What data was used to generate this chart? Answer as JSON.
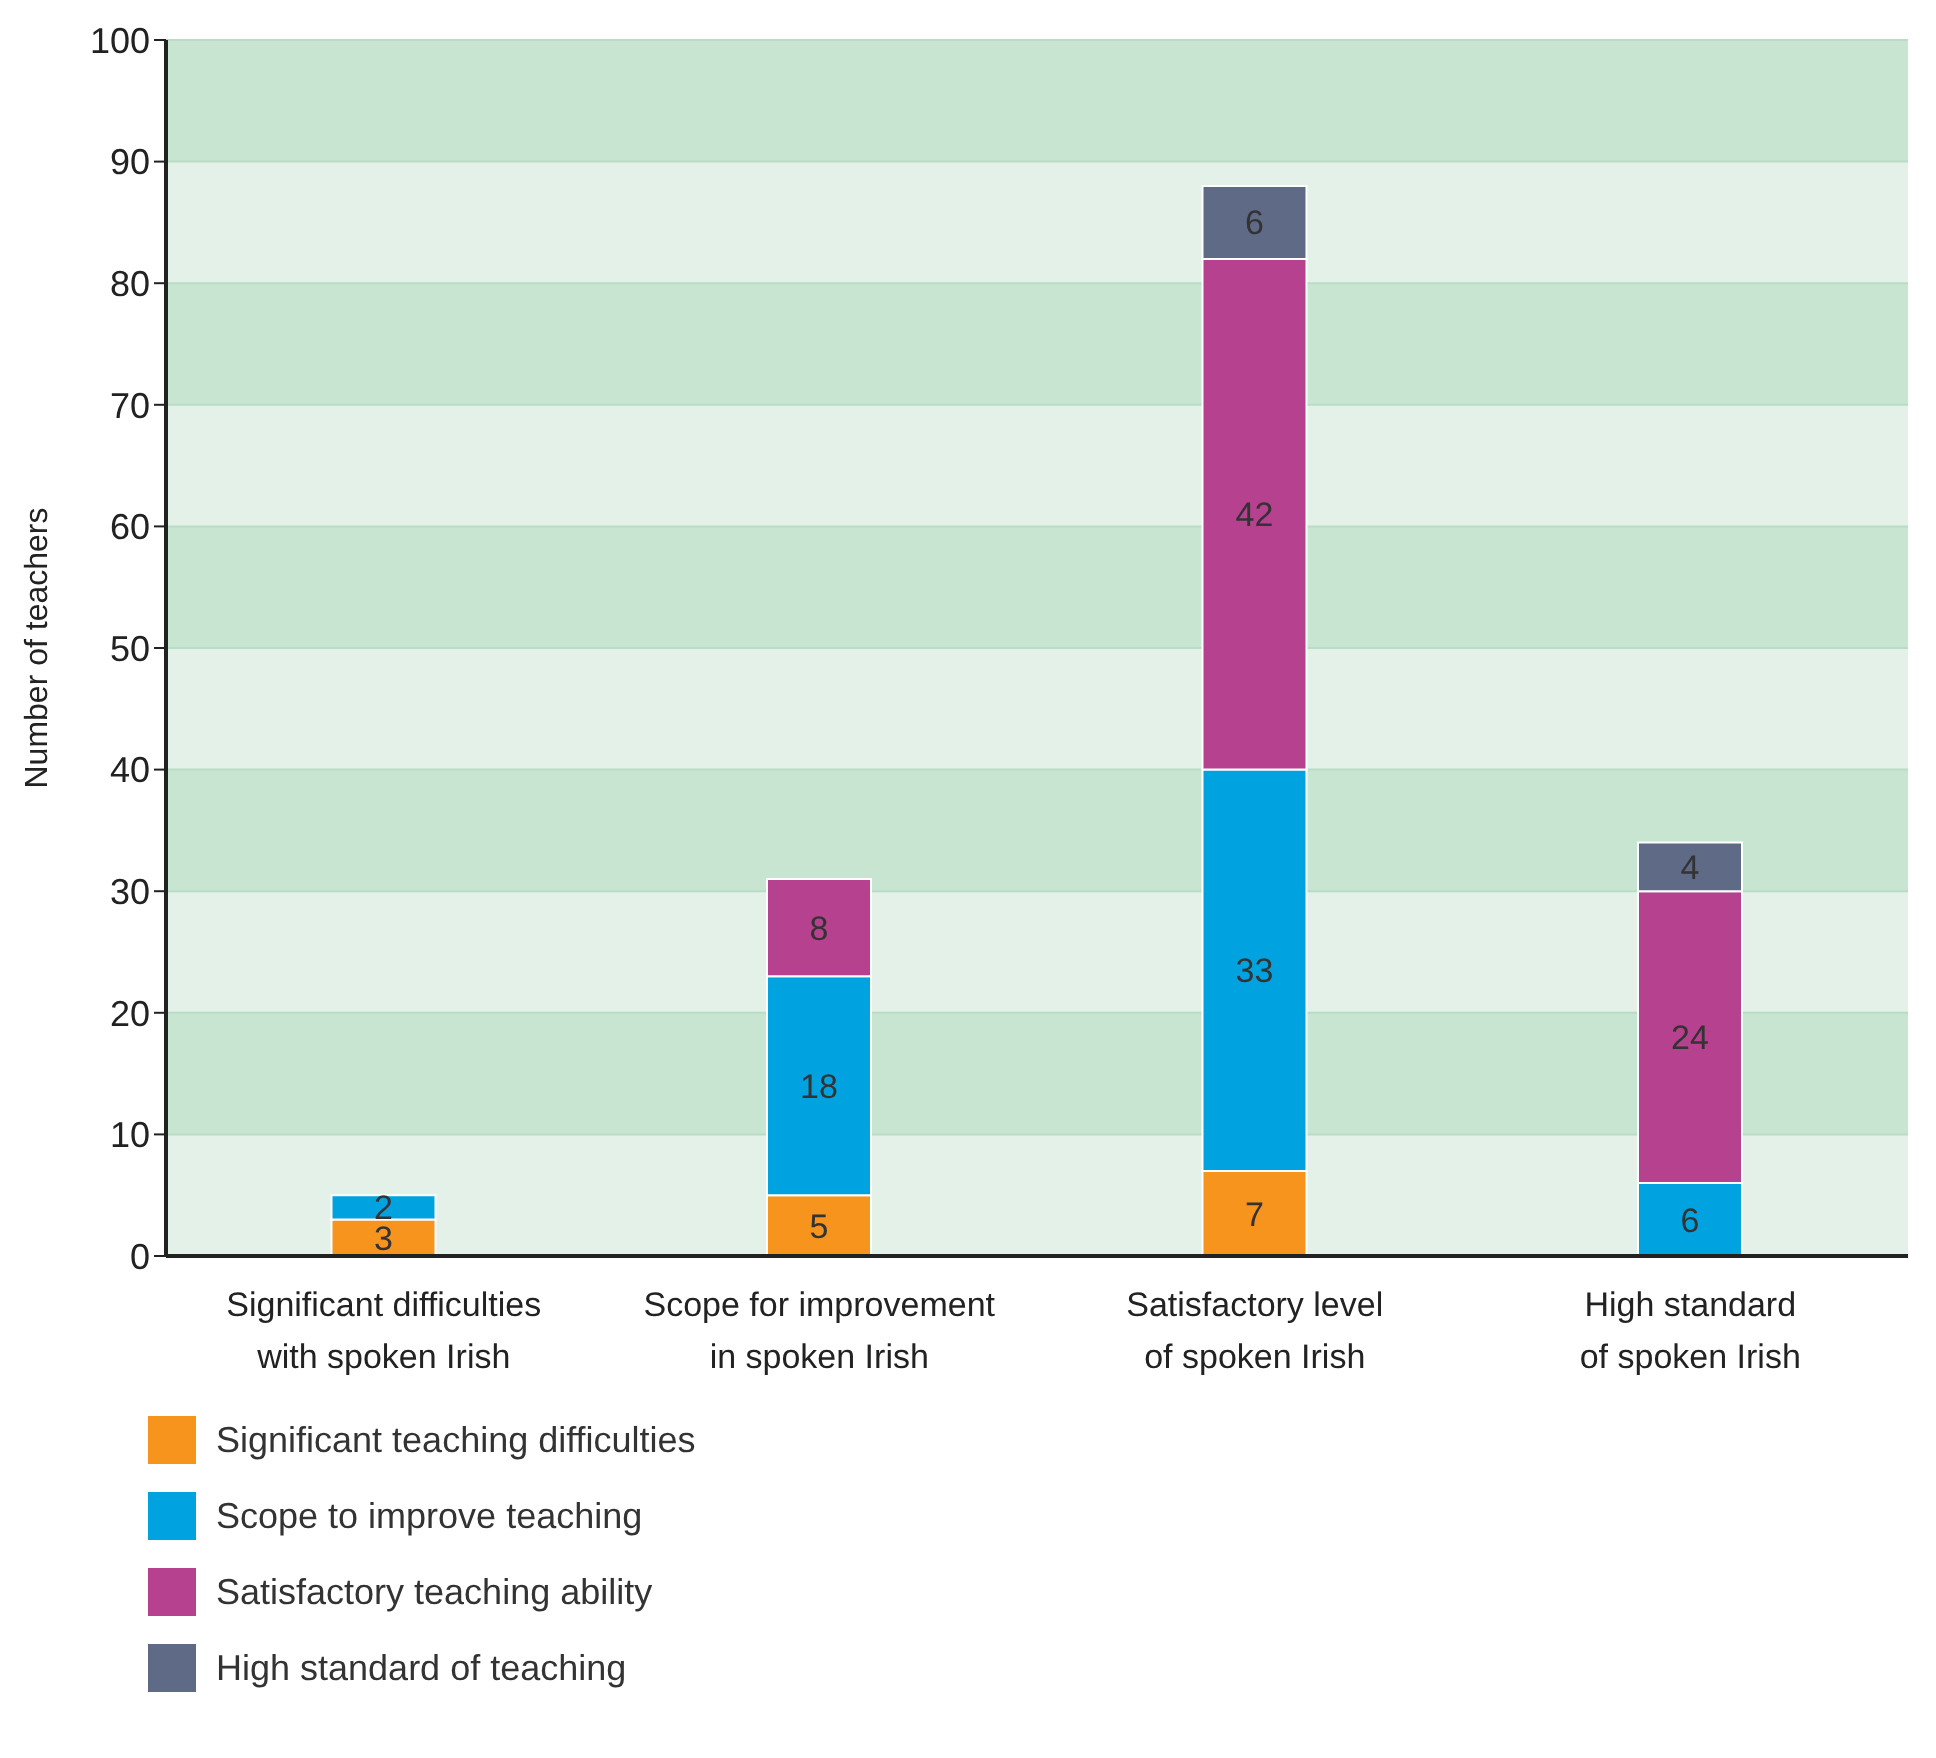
{
  "chart_data": {
    "type": "bar",
    "stacked": true,
    "ylabel": "Number of teachers",
    "categories": [
      "Significant difficulties with spoken Irish",
      "Scope for improvement in spoken Irish",
      "Satisfactory level of spoken Irish",
      "High standard of spoken Irish"
    ],
    "series": [
      {
        "name": "Significant teaching difficulties",
        "color": "#f7941d",
        "values": [
          3,
          5,
          7,
          null
        ]
      },
      {
        "name": "Scope to improve teaching",
        "color": "#00a3e0",
        "values": [
          2,
          18,
          33,
          6
        ]
      },
      {
        "name": "Satisfactory teaching ability",
        "color": "#b5418f",
        "values": [
          null,
          8,
          42,
          24
        ]
      },
      {
        "name": "High standard of teaching",
        "color": "#5f6b86",
        "values": [
          null,
          null,
          6,
          4
        ]
      }
    ],
    "ylim": [
      0,
      100
    ],
    "yticks": [
      0,
      10,
      20,
      30,
      40,
      50,
      60,
      70,
      80,
      90,
      100
    ],
    "grid": "y",
    "legend": "bottom left",
    "data_labels": true
  }
}
